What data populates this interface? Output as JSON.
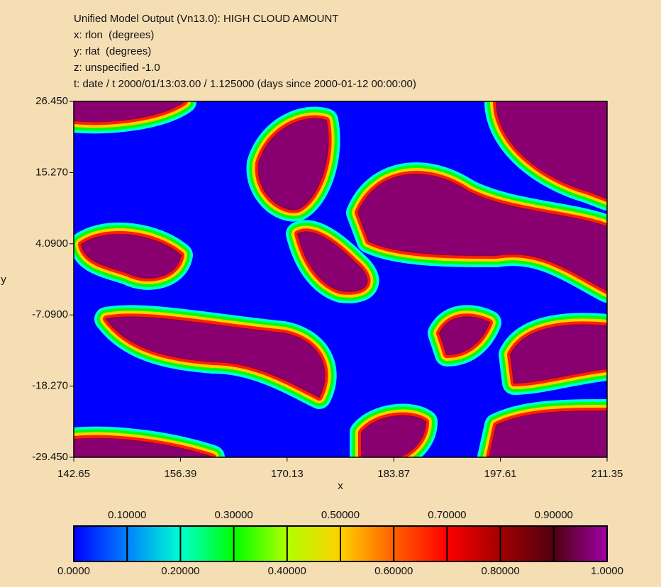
{
  "chart_data": {
    "type": "heatmap",
    "title": "Unified Model Output (Vn13.0): HIGH CLOUD AMOUNT",
    "subtitle_lines": [
      "x: rlon  (degrees)",
      "y: rlat  (degrees)",
      "z: unspecified -1.0",
      "t: date / t 2000/01/13:03.00 / 1.125000 (days since 2000-01-12 00:00:00)"
    ],
    "x_label": "x",
    "y_label": "y",
    "xlim": [
      142.65,
      211.35
    ],
    "xticks": [
      142.65,
      156.39,
      170.13,
      183.87,
      197.61,
      211.35
    ],
    "ylim": [
      -29.45,
      26.45
    ],
    "yticks": [
      {
        "value": 26.45,
        "label": "26.450"
      },
      {
        "value": 15.27,
        "label": "15.270"
      },
      {
        "value": 4.09,
        "label": "4.0900"
      },
      {
        "value": -7.09,
        "label": "-7.0900"
      },
      {
        "value": -18.27,
        "label": "-18.270"
      },
      {
        "value": -29.45,
        "label": "-29.450"
      }
    ],
    "colorbar": {
      "lim": [
        0,
        1
      ],
      "ticks": [
        {
          "value": 0,
          "label": "0.0000"
        },
        {
          "value": 0.1,
          "label": "0.10000"
        },
        {
          "value": 0.2,
          "label": "0.20000"
        },
        {
          "value": 0.3,
          "label": "0.30000"
        },
        {
          "value": 0.4,
          "label": "0.40000"
        },
        {
          "value": 0.5,
          "label": "0.50000"
        },
        {
          "value": 0.6,
          "label": "0.60000"
        },
        {
          "value": 0.7,
          "label": "0.70000"
        },
        {
          "value": 0.8,
          "label": "0.80000"
        },
        {
          "value": 0.9,
          "label": "0.90000"
        },
        {
          "value": 1,
          "label": "1.0000"
        }
      ],
      "colors": [
        "#0000ff",
        "#0080ff",
        "#00ffd0",
        "#00ff00",
        "#b0ff00",
        "#ffd000",
        "#ff6000",
        "#ff0000",
        "#a00000",
        "#500010",
        "#a000a8"
      ]
    }
  }
}
